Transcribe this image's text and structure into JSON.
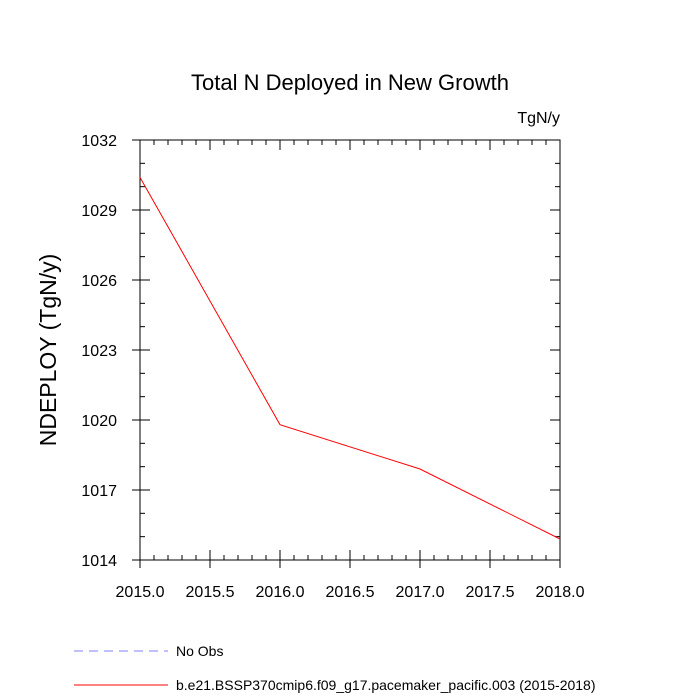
{
  "chart_data": {
    "type": "line",
    "title": "Total N Deployed in New Growth",
    "units": "TgN/y",
    "xlabel": "",
    "ylabel": "NDEPLOY  (TgN/y)",
    "xlim": [
      2015.0,
      2018.0
    ],
    "ylim": [
      1014,
      1032
    ],
    "x_major_ticks": [
      2015.0,
      2015.5,
      2016.0,
      2016.5,
      2017.0,
      2017.5,
      2018.0
    ],
    "x_tick_labels": [
      "2015.0",
      "2015.5",
      "2016.0",
      "2016.5",
      "2017.0",
      "2017.5",
      "2018.0"
    ],
    "x_minor_ticks": [
      2015.1,
      2015.2,
      2015.3,
      2015.4,
      2015.6,
      2015.7,
      2015.8,
      2015.9,
      2016.1,
      2016.2,
      2016.3,
      2016.4,
      2016.6,
      2016.7,
      2016.8,
      2016.9,
      2017.1,
      2017.2,
      2017.3,
      2017.4,
      2017.6,
      2017.7,
      2017.8,
      2017.9
    ],
    "y_major_ticks": [
      1014,
      1017,
      1020,
      1023,
      1026,
      1029,
      1032
    ],
    "y_tick_labels": [
      "1014",
      "1017",
      "1020",
      "1023",
      "1026",
      "1029",
      "1032"
    ],
    "y_minor_ticks": [
      1015,
      1016,
      1018,
      1019,
      1021,
      1022,
      1024,
      1025,
      1027,
      1028,
      1030,
      1031
    ],
    "grid": false,
    "legend_position": "bottom-left",
    "series": [
      {
        "name": "No Obs",
        "color": "#8080ff",
        "dash": "dashed",
        "x": [],
        "y": []
      },
      {
        "name": "b.e21.BSSP370cmip6.f09_g17.pacemaker_pacific.003 (2015-2018)",
        "color": "#ff0000",
        "dash": "solid",
        "x": [
          2015.0,
          2016.0,
          2017.0,
          2018.0
        ],
        "y": [
          1030.4,
          1019.8,
          1017.9,
          1014.9
        ]
      }
    ]
  }
}
